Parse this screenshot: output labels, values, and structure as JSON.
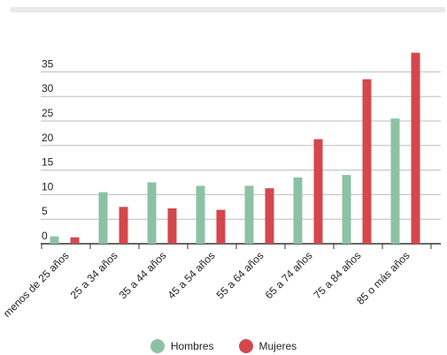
{
  "chart_data": {
    "type": "bar",
    "categories": [
      "menos de 25 años",
      "25 a 34 años",
      "35 a 44 años",
      "45 a 54 años",
      "55 a 64 años",
      "65 a 74 años",
      "75 a 84 años",
      "85 o más años"
    ],
    "series": [
      {
        "name": "Hombres",
        "color": "#8cc2a4",
        "values": [
          1.5,
          10.5,
          12.5,
          11.8,
          11.8,
          13.5,
          14.0,
          25.5
        ]
      },
      {
        "name": "Mujeres",
        "color": "#d4474d",
        "values": [
          1.3,
          7.5,
          7.2,
          6.9,
          11.3,
          21.3,
          33.5,
          38.9
        ]
      }
    ],
    "yticks": [
      0,
      5,
      10,
      15,
      20,
      25,
      30,
      35
    ],
    "ylim": [
      0,
      39
    ],
    "grid": true,
    "legend_position": "bottom"
  }
}
